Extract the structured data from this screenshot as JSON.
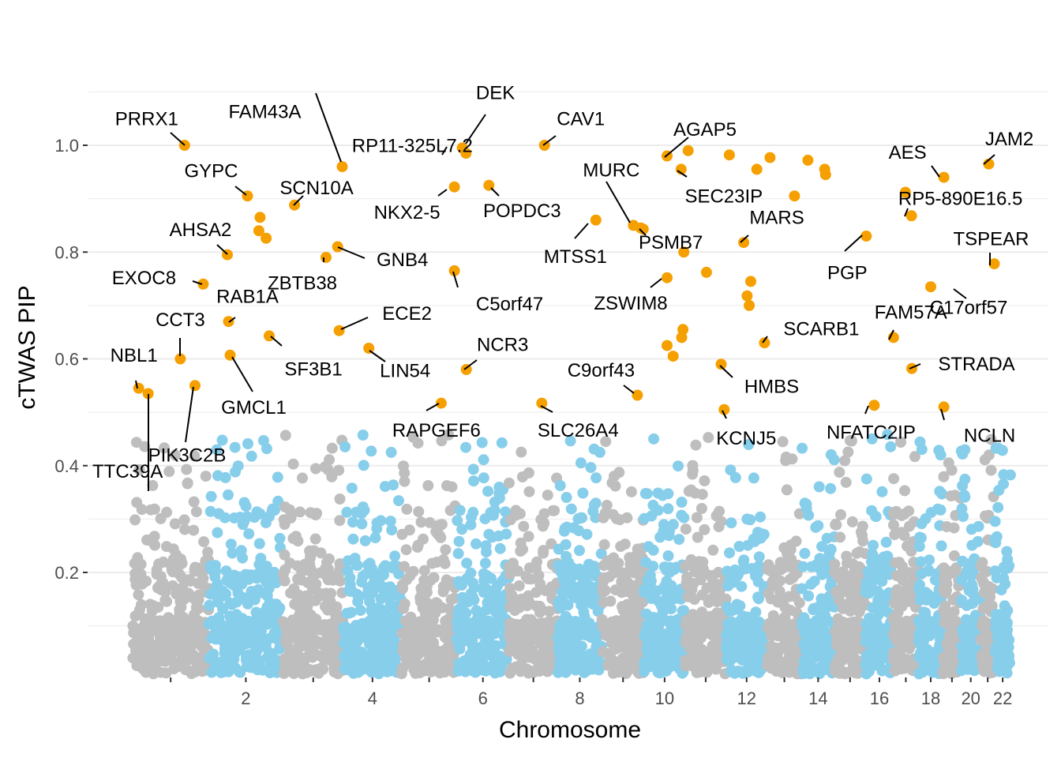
{
  "chart_data": {
    "type": "scatter",
    "subtype": "manhattan",
    "title": "",
    "xlabel": "Chromosome",
    "ylabel": "cTWAS PIP",
    "x_ticks": [
      "2",
      "4",
      "6",
      "8",
      "10",
      "12",
      "14",
      "16",
      "18",
      "20",
      "22"
    ],
    "y_ticks": [
      "0.2",
      "0.4",
      "0.6",
      "0.8",
      "1.0"
    ],
    "ylim": [
      0,
      1.12
    ],
    "grid": true,
    "legend": "none",
    "colors": {
      "significant": "#F5A000",
      "odd_chromosome": "#BEBEBE",
      "even_chromosome": "#87CEEB",
      "grid": "#EBEBEB",
      "text": "#000000",
      "tick_text": "#4D4D4D"
    },
    "chromosome_sizes_mb": [
      249,
      243,
      198,
      190,
      181,
      171,
      159,
      145,
      138,
      134,
      135,
      133,
      114,
      107,
      102,
      90,
      83,
      80,
      59,
      64,
      47,
      51
    ],
    "significant_genes": [
      {
        "gene": "PRRX1",
        "chr": 1,
        "pos": 170,
        "pip": 1.0
      },
      {
        "gene": "FAM43A",
        "chr": 3,
        "pos": 194,
        "pip": 0.96
      },
      {
        "gene": "RP11-325L7.2",
        "chr": 6,
        "pos": 30,
        "pip": 0.985
      },
      {
        "gene": "DEK",
        "chr": 6,
        "pos": 18,
        "pip": 0.995
      },
      {
        "gene": "CAV1",
        "chr": 7,
        "pos": 116,
        "pip": 1.0
      },
      {
        "gene": "AGAP5",
        "chr": 10,
        "pos": 75,
        "pip": 0.98
      },
      {
        "gene": "AES",
        "chr": 19,
        "pos": 3,
        "pip": 0.94
      },
      {
        "gene": "JAM2",
        "chr": 21,
        "pos": 27,
        "pip": 0.965
      },
      {
        "gene": "GYPC",
        "chr": 2,
        "pos": 127,
        "pip": 0.905
      },
      {
        "gene": "SCN10A",
        "chr": 3,
        "pos": 38,
        "pip": 0.888
      },
      {
        "gene": "NKX2-5",
        "chr": 5,
        "pos": 173,
        "pip": 0.922
      },
      {
        "gene": "POPDC3",
        "chr": 6,
        "pos": 105,
        "pip": 0.925
      },
      {
        "gene": "MURC",
        "chr": 9,
        "pos": 103,
        "pip": 0.85
      },
      {
        "gene": "SEC23IP",
        "chr": 10,
        "pos": 121,
        "pip": 0.955
      },
      {
        "gene": "RP5-890E16.5",
        "chr": 17,
        "pos": 60,
        "pip": 0.868
      },
      {
        "gene": "AHSA2",
        "chr": 2,
        "pos": 61,
        "pip": 0.795
      },
      {
        "gene": "ZBTB38",
        "chr": 3,
        "pos": 141,
        "pip": 0.79
      },
      {
        "gene": "GNB4",
        "chr": 3,
        "pos": 179,
        "pip": 0.81
      },
      {
        "gene": "MTSS1",
        "chr": 8,
        "pos": 125,
        "pip": 0.86
      },
      {
        "gene": "PSMB7",
        "chr": 9,
        "pos": 127,
        "pip": 0.845
      },
      {
        "gene": "MARS",
        "chr": 12,
        "pos": 57,
        "pip": 0.818
      },
      {
        "gene": "PGP",
        "chr": 16,
        "pos": 2,
        "pip": 0.83
      },
      {
        "gene": "TSPEAR",
        "chr": 21,
        "pos": 45,
        "pip": 0.778
      },
      {
        "gene": "EXOC8",
        "chr": 1,
        "pos": 231,
        "pip": 0.74
      },
      {
        "gene": "C5orf47",
        "chr": 5,
        "pos": 173,
        "pip": 0.765
      },
      {
        "gene": "ZSWIM8",
        "chr": 10,
        "pos": 75,
        "pip": 0.752
      },
      {
        "gene": "RAB1A",
        "chr": 2,
        "pos": 65,
        "pip": 0.67
      },
      {
        "gene": "CCT3",
        "chr": 1,
        "pos": 156,
        "pip": 0.6
      },
      {
        "gene": "ECE2",
        "chr": 3,
        "pos": 184,
        "pip": 0.653
      },
      {
        "gene": "SF3B1",
        "chr": 2,
        "pos": 198,
        "pip": 0.643
      },
      {
        "gene": "SCARB1",
        "chr": 12,
        "pos": 125,
        "pip": 0.63
      },
      {
        "gene": "FAM57A",
        "chr": 17,
        "pos": 1,
        "pip": 0.64
      },
      {
        "gene": "C17orf57",
        "chr": 18,
        "pos": 40,
        "pip": 0.735
      },
      {
        "gene": "STRADA",
        "chr": 17,
        "pos": 61,
        "pip": 0.582
      },
      {
        "gene": "NBL1",
        "chr": 1,
        "pos": 20,
        "pip": 0.545
      },
      {
        "gene": "NCR3",
        "chr": 6,
        "pos": 31,
        "pip": 0.58
      },
      {
        "gene": "LIN54",
        "chr": 4,
        "pos": 83,
        "pip": 0.62
      },
      {
        "gene": "GMCL1",
        "chr": 2,
        "pos": 70,
        "pip": 0.607
      },
      {
        "gene": "C9orf43",
        "chr": 9,
        "pos": 116,
        "pip": 0.532
      },
      {
        "gene": "HMBS",
        "chr": 11,
        "pos": 118,
        "pip": 0.59
      },
      {
        "gene": "TTC39A",
        "chr": 1,
        "pos": 51,
        "pip": 0.535
      },
      {
        "gene": "PIK3C2B",
        "chr": 1,
        "pos": 204,
        "pip": 0.55
      },
      {
        "gene": "RAPGEF6",
        "chr": 5,
        "pos": 130,
        "pip": 0.517
      },
      {
        "gene": "SLC26A4",
        "chr": 7,
        "pos": 107,
        "pip": 0.517
      },
      {
        "gene": "KCNJ5",
        "chr": 11,
        "pos": 128,
        "pip": 0.505
      },
      {
        "gene": "NFATC2IP",
        "chr": 16,
        "pos": 28,
        "pip": 0.513
      },
      {
        "gene": "NCLN",
        "chr": 19,
        "pos": 3,
        "pip": 0.51
      }
    ],
    "unlabeled_significant": [
      {
        "chr": 2,
        "pos": 168,
        "pip": 0.865
      },
      {
        "chr": 2,
        "pos": 164,
        "pip": 0.84
      },
      {
        "chr": 2,
        "pos": 188,
        "pip": 0.826
      },
      {
        "chr": 9,
        "pos": 135,
        "pip": 0.843
      },
      {
        "chr": 10,
        "pos": 130,
        "pip": 0.8
      },
      {
        "chr": 10,
        "pos": 127,
        "pip": 0.655
      },
      {
        "chr": 10,
        "pos": 123,
        "pip": 0.64
      },
      {
        "chr": 10,
        "pos": 75,
        "pip": 0.625
      },
      {
        "chr": 11,
        "pos": 10,
        "pip": 0.99
      },
      {
        "chr": 11,
        "pos": 70,
        "pip": 0.762
      },
      {
        "chr": 12,
        "pos": 10,
        "pip": 0.982
      },
      {
        "chr": 12,
        "pos": 100,
        "pip": 0.955
      },
      {
        "chr": 12,
        "pos": 80,
        "pip": 0.745
      },
      {
        "chr": 12,
        "pos": 68,
        "pip": 0.718
      },
      {
        "chr": 12,
        "pos": 75,
        "pip": 0.7
      },
      {
        "chr": 13,
        "pos": 10,
        "pip": 0.977
      },
      {
        "chr": 13,
        "pos": 90,
        "pip": 0.905
      },
      {
        "chr": 14,
        "pos": 20,
        "pip": 0.972
      },
      {
        "chr": 14,
        "pos": 75,
        "pip": 0.955
      },
      {
        "chr": 14,
        "pos": 78,
        "pip": 0.945
      },
      {
        "chr": 10,
        "pos": 95,
        "pip": 0.605
      },
      {
        "chr": 17,
        "pos": 40,
        "pip": 0.912
      }
    ],
    "background_points": "seeded pseudo-random PIP values below ~0.5 for every chromosome"
  }
}
